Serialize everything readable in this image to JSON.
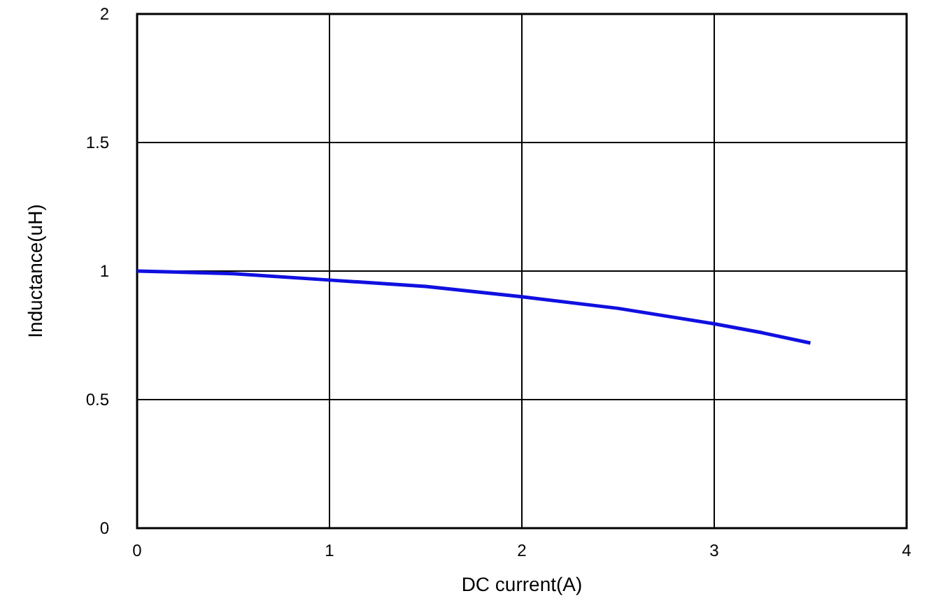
{
  "chart_data": {
    "type": "line",
    "xlabel": "DC current(A)",
    "ylabel": "Inductance(uH)",
    "series": [
      {
        "color": "#1010e0",
        "x": [
          0,
          0.5,
          1,
          1.5,
          2,
          2.5,
          3,
          3.25,
          3.5
        ],
        "values": [
          1.0,
          0.99,
          0.965,
          0.94,
          0.9,
          0.855,
          0.795,
          0.76,
          0.72
        ]
      }
    ],
    "xlim": [
      0,
      4
    ],
    "xticks": [
      0,
      1,
      2,
      3,
      4
    ],
    "ylim": [
      0,
      2
    ],
    "yticks": [
      0,
      0.5,
      1,
      1.5,
      2
    ],
    "grid": true,
    "marker": "none",
    "line_style": "solid"
  }
}
